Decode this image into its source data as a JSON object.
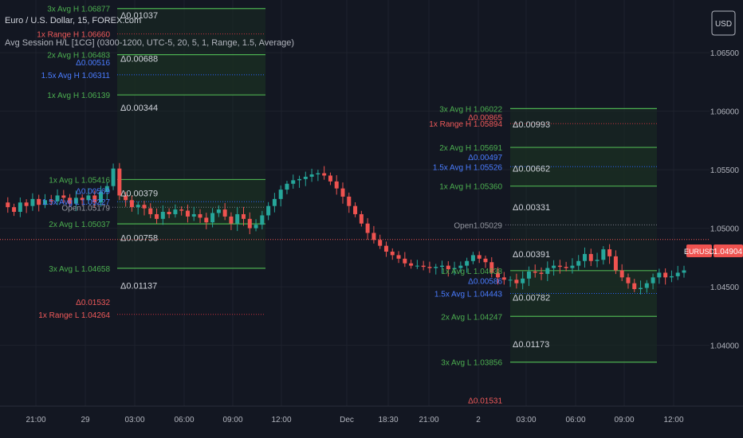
{
  "header": {
    "symbol_title": "Euro / U.S. Dollar, 15, FOREX.com",
    "indicator_title": "Avg Session H/L [1CG] (0300-1200, UTC-5, 20, 5, 1, Range, 1.5, Average)"
  },
  "currency_button": "USD",
  "price_axis": {
    "ticks": [
      "1.06500",
      "1.06000",
      "1.05500",
      "1.05000",
      "1.04500",
      "1.04000"
    ],
    "tick_values": [
      1.065,
      1.06,
      1.055,
      1.05,
      1.045,
      1.04
    ]
  },
  "time_axis": {
    "labels": [
      "21:00",
      "29",
      "03:00",
      "06:00",
      "09:00",
      "12:00",
      "Dec",
      "18:30",
      "21:00",
      "2",
      "03:00",
      "06:00",
      "09:00",
      "12:00"
    ]
  },
  "current_price": {
    "symbol": "EURUSD",
    "price": "1.04904",
    "value": 1.04904
  },
  "colors": {
    "background": "#131722",
    "up": "#26a69a",
    "down": "#ef5350",
    "avg_line": "#4caf50",
    "avg_fill": "#1a2b22",
    "blue_line": "#2962ff",
    "range_line": "#f23645",
    "grid": "#1e222d",
    "text": "#b2b5be"
  },
  "chart_data": {
    "type": "candlestick",
    "title": "Euro / U.S. Dollar, 15, FOREX.com",
    "ylim": [
      1.0348,
      1.0695
    ],
    "sessions": [
      {
        "open_label": "Open1.05179",
        "open": 1.05179,
        "levels": [
          {
            "label": "3x Avg H 1.06877",
            "value": 1.06877,
            "kind": "avg"
          },
          {
            "label": "1x Range H 1.06660",
            "value": 1.0666,
            "kind": "range"
          },
          {
            "label": "2x Avg H 1.06483",
            "value": 1.06483,
            "kind": "avg"
          },
          {
            "label": "Δ0.00516",
            "value": 1.0642,
            "kind": "blue"
          },
          {
            "label": "1.5x Avg H 1.06311",
            "value": 1.06311,
            "kind": "blue"
          },
          {
            "label": "1x Avg H 1.06139",
            "value": 1.06139,
            "kind": "avg"
          },
          {
            "label": "1x Avg L 1.05416",
            "value": 1.05416,
            "kind": "avg"
          },
          {
            "label": "Δ0.00569",
            "value": 1.0532,
            "kind": "blue"
          },
          {
            "label": "1.5x Avg L 1.05227",
            "value": 1.05227,
            "kind": "blue"
          },
          {
            "label": "2x Avg L 1.05037",
            "value": 1.05037,
            "kind": "avg"
          },
          {
            "label": "3x Avg L 1.04658",
            "value": 1.04658,
            "kind": "avg"
          },
          {
            "label": "Δ0.01532",
            "value": 1.0437,
            "kind": "range"
          },
          {
            "label": "1x Range L 1.04264",
            "value": 1.04264,
            "kind": "range"
          }
        ],
        "deltas": [
          "Δ0.01037",
          "Δ0.00688",
          "Δ0.00344",
          "Δ0.00379",
          "Δ0.00758",
          "Δ0.01137"
        ],
        "delta_values": [
          1.0682,
          1.0645,
          1.0603,
          1.053,
          1.0492,
          1.0451
        ]
      },
      {
        "open_label": "Open1.05029",
        "open": 1.05029,
        "levels": [
          {
            "label": "3x Avg H 1.06022",
            "value": 1.06022,
            "kind": "avg"
          },
          {
            "label": "Δ0.00865",
            "value": 1.0595,
            "kind": "range"
          },
          {
            "label": "1x Range H 1.05894",
            "value": 1.05894,
            "kind": "range"
          },
          {
            "label": "2x Avg H 1.05691",
            "value": 1.05691,
            "kind": "avg"
          },
          {
            "label": "Δ0.00497",
            "value": 1.0561,
            "kind": "blue"
          },
          {
            "label": "1.5x Avg H 1.05526",
            "value": 1.05526,
            "kind": "blue"
          },
          {
            "label": "1x Avg H 1.05360",
            "value": 1.0536,
            "kind": "avg"
          },
          {
            "label": "1x Avg L 1.04638",
            "value": 1.04638,
            "kind": "avg"
          },
          {
            "label": "Δ0.00586",
            "value": 1.0455,
            "kind": "blue"
          },
          {
            "label": "1.5x Avg L 1.04443",
            "value": 1.04443,
            "kind": "blue"
          },
          {
            "label": "2x Avg L 1.04247",
            "value": 1.04247,
            "kind": "avg"
          },
          {
            "label": "3x Avg L 1.03856",
            "value": 1.03856,
            "kind": "avg"
          },
          {
            "label": "Δ0.01531",
            "value": 1.0353,
            "kind": "range"
          }
        ],
        "deltas": [
          "Δ0.00993",
          "Δ0.00662",
          "Δ0.00331",
          "Δ0.00391",
          "Δ0.00782",
          "Δ0.01173"
        ],
        "delta_values": [
          1.0589,
          1.0551,
          1.0518,
          1.0478,
          1.0441,
          1.0401
        ]
      }
    ],
    "price_path": [
      1.0522,
      1.0518,
      1.0514,
      1.0522,
      1.0519,
      1.0525,
      1.052,
      1.0524,
      1.0523,
      1.0528,
      1.0526,
      1.0521,
      1.0526,
      1.0524,
      1.0528,
      1.0522,
      1.0531,
      1.0536,
      1.0551,
      1.0528,
      1.0524,
      1.0518,
      1.052,
      1.0517,
      1.0512,
      1.0508,
      1.0514,
      1.0512,
      1.0516,
      1.0515,
      1.051,
      1.0512,
      1.0509,
      1.0505,
      1.0513,
      1.0516,
      1.051,
      1.0504,
      1.0512,
      1.0508,
      1.05,
      1.0503,
      1.0511,
      1.0519,
      1.0525,
      1.0533,
      1.0538,
      1.0541,
      1.0542,
      1.0544,
      1.0546,
      1.0547,
      1.0545,
      1.054,
      1.0534,
      1.0527,
      1.0519,
      1.0512,
      1.0504,
      1.0496,
      1.049,
      1.0485,
      1.048,
      1.0477,
      1.0474,
      1.047,
      1.0468,
      1.0468,
      1.0467,
      1.0466,
      1.0467,
      1.0468,
      1.0465,
      1.0466,
      1.0468,
      1.0472,
      1.0477,
      1.0474,
      1.0471,
      1.0462,
      1.0458,
      1.0456,
      1.0456,
      1.0453,
      1.0457,
      1.0463,
      1.0462,
      1.0461,
      1.0466,
      1.0468,
      1.0467,
      1.0466,
      1.0468,
      1.0472,
      1.0478,
      1.0472,
      1.0473,
      1.0482,
      1.0476,
      1.0464,
      1.0458,
      1.0453,
      1.0448,
      1.0449,
      1.0453,
      1.0458,
      1.0462,
      1.0458,
      1.0459,
      1.0462,
      1.0464
    ]
  }
}
